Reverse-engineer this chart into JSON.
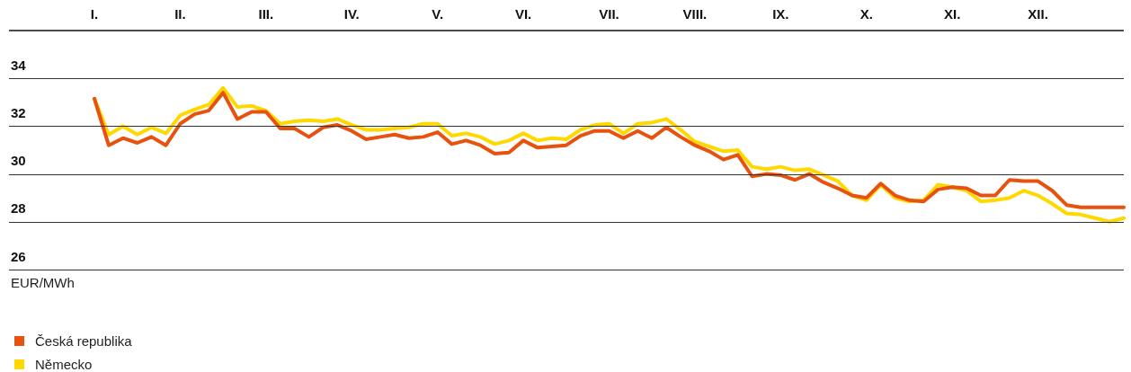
{
  "chart_data": {
    "type": "line",
    "ylabel": "EUR/MWh",
    "categories": [
      "I.",
      null,
      null,
      null,
      null,
      null,
      "II.",
      null,
      null,
      null,
      null,
      null,
      "III.",
      null,
      null,
      null,
      null,
      null,
      "IV.",
      null,
      null,
      null,
      null,
      null,
      "V.",
      null,
      null,
      null,
      null,
      null,
      "VI.",
      null,
      null,
      null,
      null,
      null,
      "VII.",
      null,
      null,
      null,
      null,
      null,
      "VIII.",
      null,
      null,
      null,
      null,
      null,
      "IX.",
      null,
      null,
      null,
      null,
      null,
      "X.",
      null,
      null,
      null,
      null,
      null,
      "XI.",
      null,
      null,
      null,
      null,
      null,
      "XII.",
      null,
      null,
      null,
      null,
      null,
      null
    ],
    "ylim": [
      26,
      36
    ],
    "yticks": [
      26,
      28,
      30,
      32,
      34
    ],
    "grid": "y",
    "legend": "bottom left",
    "series": [
      {
        "name": "Česká republika",
        "color": "#e8520f",
        "values": [
          33.15,
          31.2,
          31.5,
          31.3,
          31.55,
          31.2,
          32.1,
          32.5,
          32.65,
          33.4,
          32.3,
          32.6,
          32.6,
          31.9,
          31.9,
          31.55,
          31.95,
          32.05,
          31.8,
          31.45,
          31.55,
          31.65,
          31.5,
          31.55,
          31.75,
          31.25,
          31.4,
          31.2,
          30.85,
          30.9,
          31.4,
          31.1,
          31.15,
          31.2,
          31.6,
          31.8,
          31.8,
          31.5,
          31.8,
          31.5,
          31.95,
          31.55,
          31.2,
          30.95,
          30.6,
          30.8,
          29.9,
          30.0,
          29.95,
          29.75,
          30.0,
          29.65,
          29.4,
          29.1,
          29.0,
          29.6,
          29.1,
          28.9,
          28.85,
          29.35,
          29.45,
          29.4,
          29.1,
          29.1,
          29.75,
          29.7,
          29.7,
          29.3,
          28.7,
          28.6,
          28.6,
          28.6,
          28.6
        ]
      },
      {
        "name": "Německo",
        "color": "#ffd800",
        "values": [
          33.15,
          31.65,
          32.0,
          31.65,
          31.95,
          31.7,
          32.45,
          32.7,
          32.9,
          33.6,
          32.8,
          32.85,
          32.65,
          32.1,
          32.2,
          32.25,
          32.2,
          32.3,
          32.05,
          31.85,
          31.85,
          31.9,
          31.95,
          32.1,
          32.1,
          31.6,
          31.7,
          31.55,
          31.25,
          31.4,
          31.7,
          31.4,
          31.5,
          31.45,
          31.85,
          32.05,
          32.1,
          31.7,
          32.1,
          32.15,
          32.3,
          31.85,
          31.35,
          31.15,
          30.95,
          31.0,
          30.3,
          30.2,
          30.3,
          30.15,
          30.2,
          29.95,
          29.7,
          29.1,
          28.9,
          29.55,
          29.0,
          28.85,
          28.9,
          29.55,
          29.45,
          29.3,
          28.85,
          28.9,
          29.0,
          29.3,
          29.1,
          28.75,
          28.35,
          28.3,
          28.15,
          28.0,
          28.15
        ]
      }
    ]
  }
}
